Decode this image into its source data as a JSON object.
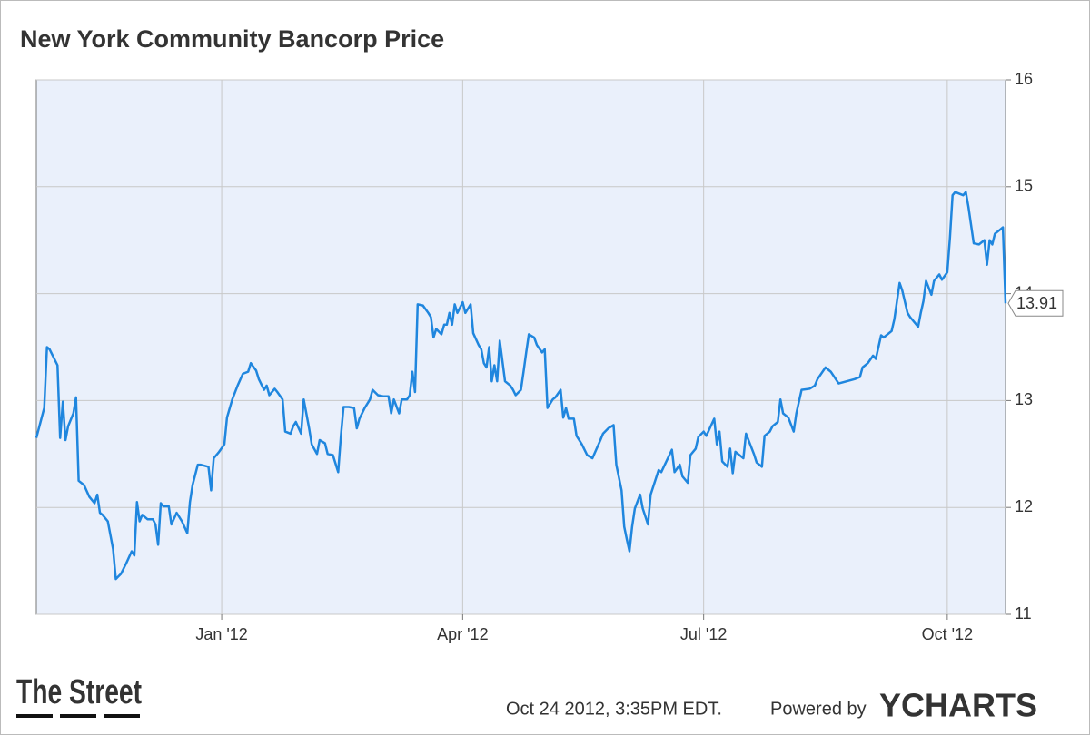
{
  "chart_data": {
    "type": "line",
    "title": "New York Community Bancorp Price",
    "color": "#1f86de",
    "x": [
      0,
      3,
      4,
      5,
      8,
      9,
      10,
      11,
      12,
      14,
      15,
      16,
      18,
      20,
      22,
      23,
      24,
      25,
      27,
      28,
      29,
      30,
      32,
      34,
      36,
      37,
      38,
      39,
      40,
      42,
      44,
      45,
      46,
      47,
      48,
      50,
      51,
      53,
      55,
      57,
      58,
      59,
      61,
      62,
      65,
      66,
      67,
      69,
      71,
      72,
      74,
      76,
      78,
      80,
      81,
      83,
      84,
      86,
      87,
      88,
      90,
      91,
      93,
      94,
      96,
      97,
      98,
      100,
      101,
      103,
      104,
      106,
      107,
      109,
      110,
      112,
      114,
      115,
      116,
      118,
      120,
      121,
      122,
      124,
      126,
      127,
      129,
      131,
      133,
      134,
      135,
      137,
      138,
      140,
      141,
      142,
      143,
      144,
      146,
      148,
      149,
      150,
      151,
      153,
      154,
      155,
      156,
      157,
      158,
      159,
      161,
      162,
      164,
      165,
      167,
      168,
      169,
      170,
      171,
      172,
      173,
      174,
      175,
      177,
      179,
      180,
      181,
      183,
      184,
      185,
      186,
      188,
      189,
      191,
      192,
      193,
      195,
      196,
      198,
      199,
      200,
      201,
      203,
      204,
      206,
      208,
      210,
      213,
      214,
      216,
      218,
      219,
      221,
      222,
      223,
      224,
      225,
      226,
      228,
      229,
      231,
      232,
      235,
      236,
      240,
      241,
      243,
      244,
      246,
      247,
      249,
      250,
      252,
      253,
      256,
      257,
      258,
      259,
      261,
      262,
      263,
      264,
      267,
      268,
      271,
      272,
      274,
      275,
      277,
      278,
      280,
      281,
      282,
      284,
      286,
      287,
      289,
      292,
      294,
      295,
      298,
      300,
      303,
      306,
      309,
      311,
      312,
      314,
      316,
      317,
      319,
      320,
      323,
      324,
      326,
      327,
      329,
      330,
      333,
      334,
      335,
      336,
      338,
      339,
      341,
      342,
      344,
      345,
      346,
      347,
      350,
      351,
      352,
      354,
      356,
      358,
      359,
      360,
      361,
      362,
      363,
      365,
      366
    ],
    "values": [
      12.65,
      12.93,
      13.5,
      13.48,
      13.33,
      12.65,
      12.99,
      12.63,
      12.76,
      12.88,
      13.03,
      12.25,
      12.21,
      12.1,
      12.04,
      12.12,
      11.95,
      11.93,
      11.87,
      11.74,
      11.61,
      11.33,
      11.38,
      11.48,
      11.59,
      11.55,
      12.05,
      11.87,
      11.93,
      11.89,
      11.89,
      11.84,
      11.65,
      12.04,
      12.01,
      12.01,
      11.84,
      11.95,
      11.87,
      11.76,
      12.05,
      12.21,
      12.4,
      12.4,
      12.38,
      12.16,
      12.46,
      12.52,
      12.59,
      12.84,
      13.01,
      13.14,
      13.25,
      13.27,
      13.35,
      13.28,
      13.2,
      13.1,
      13.14,
      13.05,
      13.11,
      13.08,
      13.01,
      12.71,
      12.69,
      12.76,
      12.8,
      12.69,
      13.01,
      12.74,
      12.59,
      12.5,
      12.63,
      12.6,
      12.5,
      12.49,
      12.33,
      12.67,
      12.94,
      12.94,
      12.93,
      12.74,
      12.83,
      12.93,
      13.01,
      13.1,
      13.05,
      13.04,
      13.04,
      12.88,
      13.01,
      12.88,
      13.01,
      13.01,
      13.05,
      13.27,
      13.08,
      13.9,
      13.89,
      13.82,
      13.78,
      13.59,
      13.67,
      13.62,
      13.71,
      13.71,
      13.82,
      13.71,
      13.9,
      13.82,
      13.92,
      13.82,
      13.9,
      13.63,
      13.52,
      13.48,
      13.35,
      13.31,
      13.5,
      13.18,
      13.33,
      13.18,
      13.56,
      13.18,
      13.14,
      13.1,
      13.05,
      13.1,
      13.27,
      13.45,
      13.62,
      13.59,
      13.52,
      13.45,
      13.48,
      12.93,
      13.01,
      13.03,
      13.1,
      12.84,
      12.93,
      12.83,
      12.83,
      12.67,
      12.59,
      12.49,
      12.46,
      12.63,
      12.69,
      12.74,
      12.77,
      12.4,
      12.16,
      11.82,
      11.7,
      11.59,
      11.82,
      11.99,
      12.12,
      11.99,
      11.84,
      12.12,
      12.35,
      12.33,
      12.54,
      12.33,
      12.4,
      12.29,
      12.23,
      12.49,
      12.55,
      12.66,
      12.71,
      12.67,
      12.83,
      12.59,
      12.71,
      12.43,
      12.38,
      12.55,
      12.32,
      12.52,
      12.46,
      12.69,
      12.5,
      12.42,
      12.38,
      12.67,
      12.71,
      12.76,
      12.8,
      13.01,
      12.88,
      12.84,
      12.71,
      12.88,
      13.1,
      13.11,
      13.14,
      13.2,
      13.31,
      13.27,
      13.16,
      13.18,
      13.2,
      13.22,
      13.31,
      13.35,
      13.42,
      13.39,
      13.61,
      13.59,
      13.65,
      13.76,
      14.1,
      14.03,
      13.82,
      13.78,
      13.69,
      13.82,
      13.93,
      14.12,
      13.99,
      14.12,
      14.18,
      14.13,
      14.2,
      14.52,
      14.92,
      14.95,
      14.92,
      14.95,
      14.81,
      14.47,
      14.46,
      14.5,
      14.27,
      14.5,
      14.46,
      14.56,
      14.58,
      14.62,
      13.91
    ],
    "xlim": [
      0,
      366
    ],
    "xticks": [
      {
        "value": 70,
        "label": "Jan '12"
      },
      {
        "value": 161,
        "label": "Apr '12"
      },
      {
        "value": 252,
        "label": "Jul '12"
      },
      {
        "value": 344,
        "label": "Oct '12"
      }
    ],
    "ylim": [
      11,
      16
    ],
    "yticks": [
      11,
      12,
      13,
      14,
      15,
      16
    ],
    "grid": true
  },
  "footer": {
    "source": "The Street",
    "timestamp": "Oct 24 2012, 3:35PM EDT.",
    "powered_by": "Powered by",
    "brand": "YCHARTS"
  }
}
